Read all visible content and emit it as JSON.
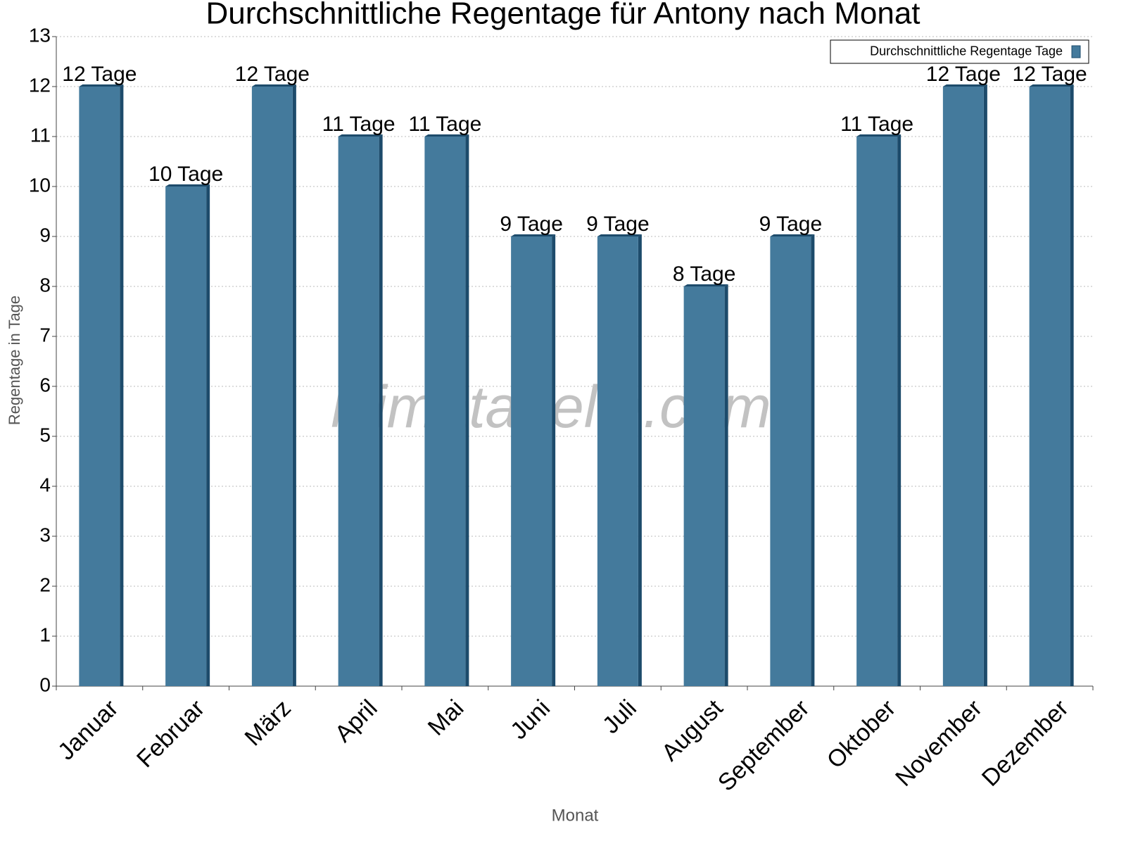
{
  "chart_data": {
    "type": "bar",
    "title": "Durchschnittliche Regentage für Antony nach Monat",
    "watermark": "klimatabelle.com",
    "x_label": "Monat",
    "y_label": "Regentage in Tage",
    "categories": [
      "Januar",
      "Februar",
      "März",
      "April",
      "Mai",
      "Juni",
      "Juli",
      "August",
      "September",
      "Oktober",
      "November",
      "Dezember"
    ],
    "series": [
      {
        "name": "Durchschnittliche Regentage Tage",
        "color": "#447a9c",
        "values": [
          12,
          10,
          12,
          11,
          11,
          9,
          9,
          8,
          9,
          11,
          12,
          12
        ],
        "value_labels": [
          "12 Tage",
          "10 Tage",
          "12 Tage",
          "11 Tage",
          "11 Tage",
          "9 Tage",
          "9 Tage",
          "8 Tage",
          "9 Tage",
          "11 Tage",
          "12 Tage",
          "12 Tage"
        ]
      }
    ],
    "ylim": [
      0,
      13
    ],
    "yticks": [
      0,
      1,
      2,
      3,
      4,
      5,
      6,
      7,
      8,
      9,
      10,
      11,
      12,
      13
    ],
    "grid": true,
    "legend": "top-right"
  }
}
